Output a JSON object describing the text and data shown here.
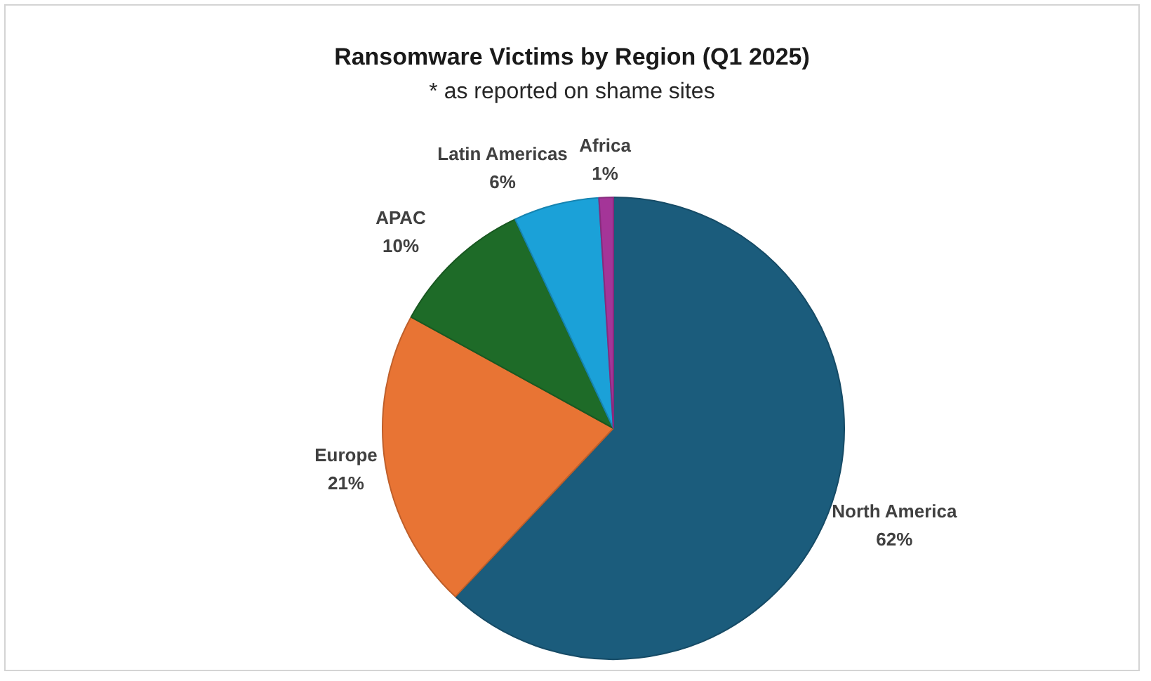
{
  "chart_data": {
    "type": "pie",
    "title": "Ransomware Victims by Region (Q1 2025)",
    "subtitle": "* as reported on shame sites",
    "categories": [
      "North America",
      "Europe",
      "APAC",
      "Latin Americas",
      "Africa"
    ],
    "values": [
      62,
      21,
      10,
      6,
      1
    ],
    "colors": [
      "#1b5c7c",
      "#e87434",
      "#1e6b28",
      "#1ba1d8",
      "#a43598"
    ],
    "value_labels": [
      "62%",
      "21%",
      "10%",
      "6%",
      "1%"
    ]
  }
}
